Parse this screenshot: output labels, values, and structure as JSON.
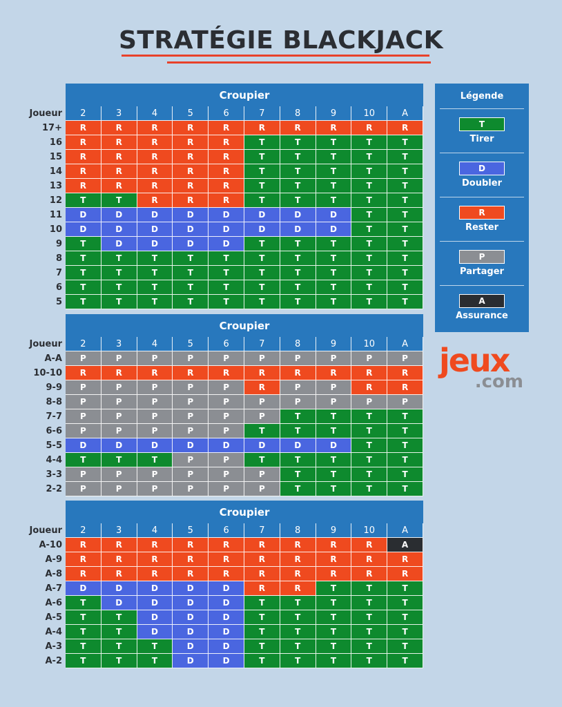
{
  "title": "STRATÉGIE BLACKJACK",
  "dealer_label": "Croupier",
  "player_label": "Joueur",
  "dealer_cards": [
    "2",
    "3",
    "4",
    "5",
    "6",
    "7",
    "8",
    "9",
    "10",
    "A"
  ],
  "sections": [
    {
      "name": "hard",
      "rows": [
        {
          "label": "17+",
          "actions": "RRRRRRRRRR"
        },
        {
          "label": "16",
          "actions": "RRRRRTTTTT"
        },
        {
          "label": "15",
          "actions": "RRRRRTTTTT"
        },
        {
          "label": "14",
          "actions": "RRRRRTTTTT"
        },
        {
          "label": "13",
          "actions": "RRRRRTTTTT"
        },
        {
          "label": "12",
          "actions": "TTRRRTTTTT"
        },
        {
          "label": "11",
          "actions": "DDDDDDDDTT"
        },
        {
          "label": "10",
          "actions": "DDDDDDDDTT"
        },
        {
          "label": "9",
          "actions": "TDDDDTTTTT"
        },
        {
          "label": "8",
          "actions": "TTTTTTTTTT"
        },
        {
          "label": "7",
          "actions": "TTTTTTTTTT"
        },
        {
          "label": "6",
          "actions": "TTTTTTTTTT"
        },
        {
          "label": "5",
          "actions": "TTTTTTTTTT"
        }
      ]
    },
    {
      "name": "pairs",
      "rows": [
        {
          "label": "A-A",
          "actions": "PPPPPPPPPP"
        },
        {
          "label": "10-10",
          "actions": "RRRRRRRRRR"
        },
        {
          "label": "9-9",
          "actions": "PPPPPRPPRR"
        },
        {
          "label": "8-8",
          "actions": "PPPPPPPPPP"
        },
        {
          "label": "7-7",
          "actions": "PPPPPPTTTT"
        },
        {
          "label": "6-6",
          "actions": "PPPPPTTTTT"
        },
        {
          "label": "5-5",
          "actions": "DDDDDDDDTT"
        },
        {
          "label": "4-4",
          "actions": "TTTPPTTTTT"
        },
        {
          "label": "3-3",
          "actions": "PPPPPPTTTT"
        },
        {
          "label": "2-2",
          "actions": "PPPPPPTTTT"
        }
      ]
    },
    {
      "name": "soft",
      "rows": [
        {
          "label": "A-10",
          "actions": "RRRRRRRRRA"
        },
        {
          "label": "A-9",
          "actions": "RRRRRRRRRR"
        },
        {
          "label": "A-8",
          "actions": "RRRRRRRRRR"
        },
        {
          "label": "A-7",
          "actions": "DDDDDRRTTT"
        },
        {
          "label": "A-6",
          "actions": "TDDDDTTTTT"
        },
        {
          "label": "A-5",
          "actions": "TTDDDTTTTT"
        },
        {
          "label": "A-4",
          "actions": "TTDDDTTTTT"
        },
        {
          "label": "A-3",
          "actions": "TTTDDTTTTT"
        },
        {
          "label": "A-2",
          "actions": "TTTDDTTTTT"
        }
      ]
    }
  ],
  "legend": {
    "title": "Légende",
    "items": [
      {
        "code": "T",
        "name": "Tirer",
        "color": "#0e8a2e"
      },
      {
        "code": "D",
        "name": "Doubler",
        "color": "#4a66e0"
      },
      {
        "code": "R",
        "name": "Rester",
        "color": "#ef4a1f"
      },
      {
        "code": "P",
        "name": "Partager",
        "color": "#8b8e93"
      },
      {
        "code": "A",
        "name": "Assurance",
        "color": "#2a2d31"
      }
    ]
  },
  "logo": {
    "line1": "jeux",
    "line2": ".com"
  },
  "colors": {
    "accent": "#e8412a",
    "header_blue": "#2878bd",
    "background": "#c3d6e8"
  }
}
